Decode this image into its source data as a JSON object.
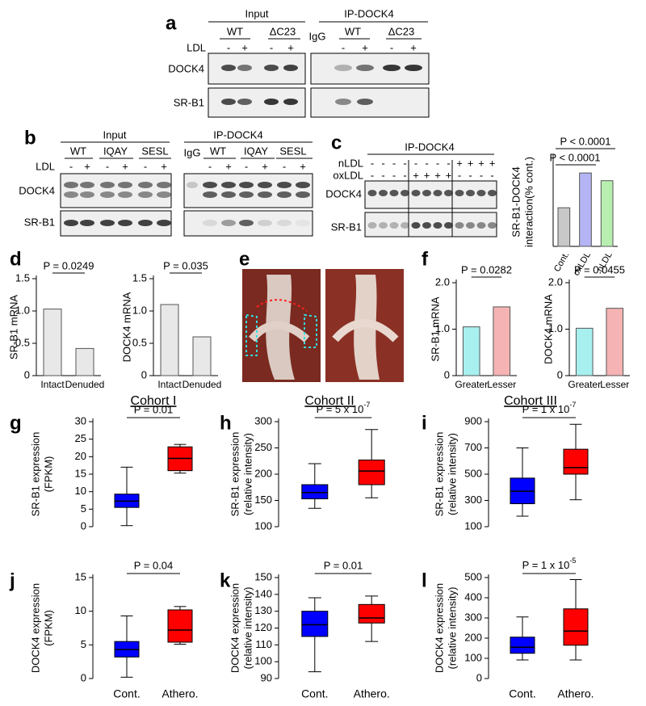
{
  "panel_labels": [
    "a",
    "b",
    "c",
    "d",
    "e",
    "f",
    "g",
    "h",
    "i",
    "j",
    "k",
    "l"
  ],
  "blot_a": {
    "input": "Input",
    "ip": "IP-DOCK4",
    "igg": "IgG",
    "groups": [
      "WT",
      "ΔC23",
      "WT",
      "ΔC23"
    ],
    "treatment": "LDL",
    "signs": [
      "-",
      "+",
      "-",
      "+",
      "-",
      "+",
      "-",
      "+"
    ],
    "rows": [
      "DOCK4",
      "SR-B1"
    ]
  },
  "blot_b": {
    "input": "Input",
    "ip": "IP-DOCK4",
    "igg": "IgG",
    "groups": [
      "WT",
      "IQAY",
      "SESL",
      "WT",
      "IQAY",
      "SESL"
    ],
    "treatment": "LDL",
    "signs": [
      "-",
      "+",
      "-",
      "+",
      "-",
      "+",
      "-",
      "+",
      "-",
      "+",
      "-",
      "+"
    ],
    "rows": [
      "DOCK4",
      "SR-B1"
    ]
  },
  "blot_c": {
    "ip": "IP-DOCK4",
    "treatments": [
      "nLDL",
      "oxLDL"
    ],
    "signs": [
      [
        "-",
        "-",
        "-",
        "-",
        "-",
        "-",
        "-",
        "-",
        "+",
        "+",
        "+",
        "+"
      ],
      [
        "-",
        "-",
        "-",
        "-",
        "+",
        "+",
        "+",
        "+",
        "-",
        "-",
        "-",
        "-"
      ]
    ],
    "rows": [
      "DOCK4",
      "SR-B1"
    ]
  },
  "chart_data": [
    {
      "type": "bar",
      "ylabel": [
        "SR-B1-DOCK4",
        "interaction(% cont.)"
      ],
      "categories": [
        "Cont.",
        "oxLDL",
        "nLDL"
      ],
      "values": [
        100,
        190,
        170
      ],
      "colors": [
        "#c8c8c8",
        "#b4b4f5",
        "#b8efb0"
      ],
      "ylim": [
        0,
        230
      ],
      "yticks": [],
      "annotations": [
        "P < 0.0001",
        "P < 0.0001"
      ]
    },
    {
      "type": "bar",
      "ylabel": [
        "SR-B1 mRNA"
      ],
      "categories": [
        "Intact",
        "Denuded"
      ],
      "values": [
        1.03,
        0.42
      ],
      "colors": [
        "#e8e8e8",
        "#e8e8e8"
      ],
      "ylim": [
        0,
        1.5
      ],
      "yticks": [
        0,
        0.5,
        {
          "value": 1,
          "label": "1.0"
        },
        1.5
      ],
      "annotations": [
        "P = 0.0249"
      ]
    },
    {
      "type": "bar",
      "ylabel": [
        "DOCK4 mRNA"
      ],
      "categories": [
        "Intact",
        "Denuded"
      ],
      "values": [
        1.1,
        0.6
      ],
      "colors": [
        "#e8e8e8",
        "#e8e8e8"
      ],
      "ylim": [
        0,
        1.5
      ],
      "yticks": [
        0,
        0.5,
        {
          "value": 1,
          "label": "1.0"
        },
        1.5
      ],
      "annotations": [
        "P = 0.035"
      ]
    },
    {
      "type": "bar",
      "ylabel": [
        "SR-B1 mRNA"
      ],
      "categories": [
        "Greater",
        "Lesser"
      ],
      "values": [
        1.05,
        1.48
      ],
      "colors": [
        "#a8f0f0",
        "#f5b3b3"
      ],
      "ylim": [
        0,
        2
      ],
      "yticks": [
        0,
        {
          "value": 1,
          "label": "1.0"
        },
        {
          "value": 2,
          "label": "2.0"
        }
      ],
      "annotations": [
        "P = 0.0282"
      ]
    },
    {
      "type": "bar",
      "ylabel": [
        "DOCK4  mRNA"
      ],
      "categories": [
        "Greater",
        "Lesser"
      ],
      "values": [
        1.02,
        1.45
      ],
      "colors": [
        "#a8f0f0",
        "#f5b3b3"
      ],
      "ylim": [
        0,
        2
      ],
      "yticks": [
        0,
        {
          "value": 1,
          "label": "1.0"
        },
        {
          "value": 2,
          "label": "2.0"
        }
      ],
      "annotations": [
        "P = 0.0455"
      ]
    },
    {
      "type": "box",
      "title": "Cohort I",
      "ylabel": [
        "SR-B1 expression",
        "(FPKM)"
      ],
      "categories": [
        null,
        null
      ],
      "colors": [
        "#0000ff",
        "#ff0000"
      ],
      "boxes": [
        {
          "min": 0.3,
          "q1": 5.5,
          "median": 7.3,
          "q3": 9.3,
          "max": 17
        },
        {
          "min": 15.3,
          "q1": 16,
          "median": 19.5,
          "q3": 22.8,
          "max": 23.5
        }
      ],
      "ylim": [
        0,
        30
      ],
      "yticks": [
        0,
        5,
        10,
        15,
        20,
        25,
        30
      ],
      "annotations": [
        "P = 0.01"
      ]
    },
    {
      "type": "box",
      "title": "Cohort II",
      "ylabel": [
        "SR-B1 expression",
        "(relative intensity)"
      ],
      "categories": [
        null,
        null
      ],
      "colors": [
        "#0000ff",
        "#ff0000"
      ],
      "boxes": [
        {
          "min": 135,
          "q1": 153,
          "median": 165,
          "q3": 180,
          "max": 220
        },
        {
          "min": 155,
          "q1": 180,
          "median": 206,
          "q3": 227,
          "max": 285
        }
      ],
      "ylim": [
        100,
        300
      ],
      "yticks": [
        100,
        150,
        200,
        250,
        300
      ],
      "annotations": [
        "P = 5 x 10"
      ],
      "exponent": "-7"
    },
    {
      "type": "box",
      "title": "Cohort III",
      "ylabel": [
        "SR-B1 expression",
        "(relative intensity)"
      ],
      "categories": [
        null,
        null
      ],
      "colors": [
        "#0000ff",
        "#ff0000"
      ],
      "boxes": [
        {
          "min": 180,
          "q1": 275,
          "median": 370,
          "q3": 470,
          "max": 700
        },
        {
          "min": 305,
          "q1": 500,
          "median": 550,
          "q3": 690,
          "max": 880
        }
      ],
      "ylim": [
        100,
        900
      ],
      "yticks": [
        100,
        300,
        500,
        700,
        900
      ],
      "annotations": [
        "P = 1 x 10"
      ],
      "exponent": "-7"
    },
    {
      "type": "box",
      "ylabel": [
        "DOCK4 expression",
        "(FPKM)"
      ],
      "categories": [
        "Cont.",
        "Athero."
      ],
      "colors": [
        "#0000ff",
        "#ff0000"
      ],
      "boxes": [
        {
          "min": 0.2,
          "q1": 3.2,
          "median": 4.3,
          "q3": 5.5,
          "max": 9.3
        },
        {
          "min": 5.1,
          "q1": 5.4,
          "median": 7.2,
          "q3": 10.2,
          "max": 10.7
        }
      ],
      "ylim": [
        0,
        15
      ],
      "yticks": [
        0,
        5,
        10,
        15
      ],
      "annotations": [
        "P = 0.04"
      ]
    },
    {
      "type": "box",
      "ylabel": [
        "DOCK4 expression",
        "(relative intensity)"
      ],
      "categories": [
        "Cont.",
        "Athero."
      ],
      "colors": [
        "#0000ff",
        "#ff0000"
      ],
      "boxes": [
        {
          "min": 94,
          "q1": 115,
          "median": 122,
          "q3": 130,
          "max": 138
        },
        {
          "min": 112,
          "q1": 123,
          "median": 126,
          "q3": 134,
          "max": 139
        }
      ],
      "ylim": [
        90,
        150
      ],
      "yticks": [
        90,
        100,
        110,
        120,
        130,
        140,
        150
      ],
      "annotations": [
        "P = 0.01"
      ]
    },
    {
      "type": "box",
      "ylabel": [
        "DOCK4 expression",
        "(relative intensity)"
      ],
      "categories": [
        "Cont.",
        "Athero."
      ],
      "colors": [
        "#0000ff",
        "#ff0000"
      ],
      "boxes": [
        {
          "min": 92,
          "q1": 125,
          "median": 155,
          "q3": 205,
          "max": 305
        },
        {
          "min": 92,
          "q1": 165,
          "median": 235,
          "q3": 345,
          "max": 490
        }
      ],
      "ylim": [
        0,
        500
      ],
      "yticks": [
        0,
        100,
        200,
        300,
        400,
        500
      ],
      "annotations": [
        "P = 1 x 10"
      ],
      "exponent": "-5"
    }
  ]
}
